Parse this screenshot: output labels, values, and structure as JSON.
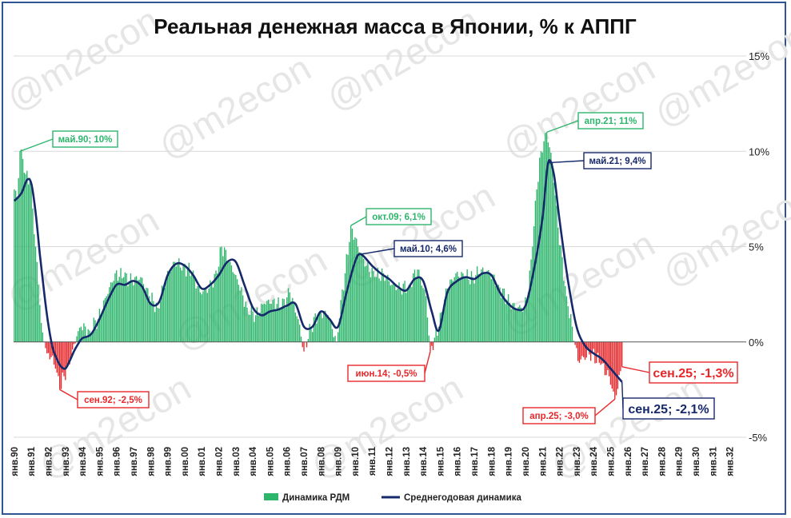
{
  "chart_data": {
    "type": "bar+line",
    "title": "Реальная денежная масса в Японии, % к АППГ",
    "ylim": [
      -5,
      15
    ],
    "y_ticks": [
      "15%",
      "10%",
      "5%",
      "0%",
      "-5%"
    ],
    "y_tick_values": [
      15,
      10,
      5,
      0,
      -5
    ],
    "x_tick_labels": [
      "янв.90",
      "янв.91",
      "янв.92",
      "янв.93",
      "янв.94",
      "янв.95",
      "янв.96",
      "янв.97",
      "янв.98",
      "янв.99",
      "янв.00",
      "янв.01",
      "янв.02",
      "янв.03",
      "янв.04",
      "янв.05",
      "янв.06",
      "янв.07",
      "янв.08",
      "янв.09",
      "янв.10",
      "янв.11",
      "янв.12",
      "янв.13",
      "янв.14",
      "янв.15",
      "янв.16",
      "янв.17",
      "янв.18",
      "янв.19",
      "янв.20",
      "янв.21",
      "янв.22",
      "янв.23",
      "янв.24",
      "янв.25",
      "янв.26",
      "янв.27",
      "янв.28",
      "янв.29",
      "янв.30",
      "янв.31",
      "янв.32"
    ],
    "x_range": [
      "1990-01",
      "2032-12"
    ],
    "series": [
      {
        "name": "Динамика РДМ",
        "kind": "bar",
        "frequency": "monthly",
        "start": "1990-01",
        "positive_color": "#2db56b",
        "negative_color": "#e8272a",
        "points": [
          [
            "1990-01",
            8.0
          ],
          [
            "1990-03",
            7.6
          ],
          [
            "1990-05",
            10.0
          ],
          [
            "1990-07",
            9.6
          ],
          [
            "1990-09",
            8.8
          ],
          [
            "1990-12",
            8.6
          ],
          [
            "1991-02",
            7.0
          ],
          [
            "1991-04",
            5.0
          ],
          [
            "1991-06",
            3.0
          ],
          [
            "1991-08",
            1.0
          ],
          [
            "1991-10",
            0.0
          ],
          [
            "1991-12",
            -0.6
          ],
          [
            "1992-03",
            -0.8
          ],
          [
            "1992-06",
            -1.4
          ],
          [
            "1992-09",
            -2.5
          ],
          [
            "1992-12",
            -1.8
          ],
          [
            "1993-03",
            -1.2
          ],
          [
            "1993-06",
            -0.4
          ],
          [
            "1993-09",
            0.3
          ],
          [
            "1993-12",
            0.8
          ],
          [
            "1994-06",
            0.6
          ],
          [
            "1994-12",
            1.2
          ],
          [
            "1995-06",
            2.4
          ],
          [
            "1995-12",
            3.6
          ],
          [
            "1996-06",
            3.4
          ],
          [
            "1996-12",
            3.2
          ],
          [
            "1997-06",
            3.4
          ],
          [
            "1997-12",
            2.4
          ],
          [
            "1998-06",
            1.8
          ],
          [
            "1998-12",
            3.4
          ],
          [
            "1999-06",
            4.2
          ],
          [
            "1999-12",
            4.0
          ],
          [
            "2000-06",
            3.6
          ],
          [
            "2000-12",
            2.6
          ],
          [
            "2001-06",
            2.8
          ],
          [
            "2001-12",
            3.6
          ],
          [
            "2002-03",
            5.0
          ],
          [
            "2002-09",
            4.2
          ],
          [
            "2003-03",
            3.0
          ],
          [
            "2003-09",
            1.8
          ],
          [
            "2004-03",
            1.4
          ],
          [
            "2004-09",
            2.0
          ],
          [
            "2005-03",
            2.2
          ],
          [
            "2005-09",
            1.8
          ],
          [
            "2006-03",
            2.6
          ],
          [
            "2006-09",
            1.2
          ],
          [
            "2007-01",
            -0.5
          ],
          [
            "2007-06",
            0.8
          ],
          [
            "2007-12",
            1.6
          ],
          [
            "2008-06",
            1.4
          ],
          [
            "2008-12",
            0.0
          ],
          [
            "2009-03",
            2.2
          ],
          [
            "2009-06",
            3.6
          ],
          [
            "2009-10",
            6.1
          ],
          [
            "2010-03",
            5.0
          ],
          [
            "2010-09",
            4.0
          ],
          [
            "2011-03",
            3.4
          ],
          [
            "2011-09",
            3.6
          ],
          [
            "2012-03",
            3.0
          ],
          [
            "2012-09",
            2.8
          ],
          [
            "2013-03",
            3.0
          ],
          [
            "2013-09",
            3.8
          ],
          [
            "2014-03",
            2.4
          ],
          [
            "2014-06",
            -0.5
          ],
          [
            "2014-12",
            0.8
          ],
          [
            "2015-06",
            2.8
          ],
          [
            "2015-12",
            3.6
          ],
          [
            "2016-06",
            3.4
          ],
          [
            "2016-12",
            3.4
          ],
          [
            "2017-06",
            3.8
          ],
          [
            "2017-12",
            3.6
          ],
          [
            "2018-06",
            3.0
          ],
          [
            "2018-12",
            2.2
          ],
          [
            "2019-06",
            1.8
          ],
          [
            "2019-12",
            1.8
          ],
          [
            "2020-03",
            2.6
          ],
          [
            "2020-06",
            5.0
          ],
          [
            "2020-09",
            8.0
          ],
          [
            "2020-12",
            10.0
          ],
          [
            "2021-04",
            11.0
          ],
          [
            "2021-08",
            9.4
          ],
          [
            "2021-12",
            6.0
          ],
          [
            "2022-06",
            2.4
          ],
          [
            "2022-10",
            0.8
          ],
          [
            "2023-02",
            -1.0
          ],
          [
            "2023-06",
            -0.8
          ],
          [
            "2023-12",
            -0.6
          ],
          [
            "2024-06",
            -1.2
          ],
          [
            "2024-12",
            -1.8
          ],
          [
            "2025-04",
            -3.0
          ],
          [
            "2025-09",
            -1.3
          ]
        ]
      },
      {
        "name": "Среднегодовая динамика",
        "kind": "line",
        "color": "#16296b",
        "points": [
          [
            "1990-01",
            7.4
          ],
          [
            "1990-06",
            7.8
          ],
          [
            "1990-10",
            8.5
          ],
          [
            "1991-01",
            8.3
          ],
          [
            "1991-04",
            6.8
          ],
          [
            "1991-07",
            4.6
          ],
          [
            "1991-10",
            2.6
          ],
          [
            "1992-01",
            0.9
          ],
          [
            "1992-04",
            -0.3
          ],
          [
            "1992-07",
            -0.9
          ],
          [
            "1992-10",
            -1.3
          ],
          [
            "1993-01",
            -1.4
          ],
          [
            "1993-04",
            -1.0
          ],
          [
            "1993-07",
            -0.5
          ],
          [
            "1993-10",
            -0.1
          ],
          [
            "1994-01",
            0.2
          ],
          [
            "1994-07",
            0.4
          ],
          [
            "1995-01",
            1.2
          ],
          [
            "1995-07",
            2.2
          ],
          [
            "1996-01",
            3.0
          ],
          [
            "1996-07",
            3.0
          ],
          [
            "1997-01",
            3.2
          ],
          [
            "1997-07",
            2.9
          ],
          [
            "1998-01",
            2.0
          ],
          [
            "1998-07",
            2.1
          ],
          [
            "1999-01",
            3.5
          ],
          [
            "1999-07",
            4.1
          ],
          [
            "2000-01",
            4.0
          ],
          [
            "2000-07",
            3.5
          ],
          [
            "2001-01",
            2.8
          ],
          [
            "2001-07",
            3.0
          ],
          [
            "2002-01",
            3.5
          ],
          [
            "2002-07",
            4.2
          ],
          [
            "2003-01",
            4.2
          ],
          [
            "2003-07",
            3.0
          ],
          [
            "2004-01",
            1.8
          ],
          [
            "2004-07",
            1.4
          ],
          [
            "2005-01",
            1.6
          ],
          [
            "2005-07",
            1.7
          ],
          [
            "2006-01",
            1.9
          ],
          [
            "2006-07",
            2.0
          ],
          [
            "2007-01",
            0.8
          ],
          [
            "2007-07",
            0.8
          ],
          [
            "2008-01",
            1.6
          ],
          [
            "2008-07",
            1.2
          ],
          [
            "2009-01",
            0.8
          ],
          [
            "2009-07",
            2.6
          ],
          [
            "2010-01",
            4.2
          ],
          [
            "2010-05",
            4.6
          ],
          [
            "2011-01",
            4.0
          ],
          [
            "2011-07",
            3.6
          ],
          [
            "2012-01",
            3.3
          ],
          [
            "2012-07",
            2.9
          ],
          [
            "2013-01",
            2.7
          ],
          [
            "2013-07",
            3.3
          ],
          [
            "2014-01",
            3.2
          ],
          [
            "2014-07",
            1.6
          ],
          [
            "2014-12",
            0.6
          ],
          [
            "2015-06",
            2.6
          ],
          [
            "2016-01",
            3.2
          ],
          [
            "2016-07",
            3.4
          ],
          [
            "2017-01",
            3.3
          ],
          [
            "2017-07",
            3.6
          ],
          [
            "2018-01",
            3.5
          ],
          [
            "2018-07",
            2.6
          ],
          [
            "2019-01",
            2.0
          ],
          [
            "2019-07",
            1.7
          ],
          [
            "2020-01",
            1.9
          ],
          [
            "2020-07",
            3.8
          ],
          [
            "2021-01",
            6.5
          ],
          [
            "2021-05",
            9.4
          ],
          [
            "2021-09",
            8.8
          ],
          [
            "2022-01",
            6.4
          ],
          [
            "2022-07",
            3.2
          ],
          [
            "2023-01",
            0.8
          ],
          [
            "2023-07",
            -0.2
          ],
          [
            "2024-01",
            -0.6
          ],
          [
            "2024-07",
            -0.9
          ],
          [
            "2025-01",
            -1.4
          ],
          [
            "2025-09",
            -2.1
          ]
        ]
      }
    ],
    "annotations": [
      {
        "text": "май.90; 10%",
        "date": "1990-05",
        "value": 10.0,
        "color": "#2db56b"
      },
      {
        "text": "сен.92; -2,5%",
        "date": "1992-09",
        "value": -2.5,
        "color": "#e8272a"
      },
      {
        "text": "окт.09; 6,1%",
        "date": "2009-10",
        "value": 6.1,
        "color": "#2db56b"
      },
      {
        "text": "май.10; 4,6%",
        "date": "2010-05",
        "value": 4.6,
        "color": "#16296b"
      },
      {
        "text": "июн.14; -0,5%",
        "date": "2014-06",
        "value": -0.5,
        "color": "#e8272a"
      },
      {
        "text": "апр.21; 11%",
        "date": "2021-04",
        "value": 11.0,
        "color": "#2db56b"
      },
      {
        "text": "май.21; 9,4%",
        "date": "2021-05",
        "value": 9.4,
        "color": "#16296b"
      },
      {
        "text": "апр.25; -3,0%",
        "date": "2025-04",
        "value": -3.0,
        "color": "#e8272a"
      },
      {
        "text": "сен.25; -1,3%",
        "date": "2025-09",
        "value": -1.3,
        "color": "#e8272a"
      },
      {
        "text": "сен.25; -2,1%",
        "date": "2025-09",
        "value": -2.1,
        "color": "#16296b"
      }
    ],
    "legend": {
      "placement": "bottom-center",
      "items": [
        {
          "label": "Динамика РДМ",
          "color": "#2db56b"
        },
        {
          "label": "Среднегодовая динамика",
          "color": "#16296b"
        }
      ]
    },
    "grid": {
      "y": true,
      "x": false,
      "color": "#d9d9d9"
    },
    "watermark": "@m2econ"
  }
}
